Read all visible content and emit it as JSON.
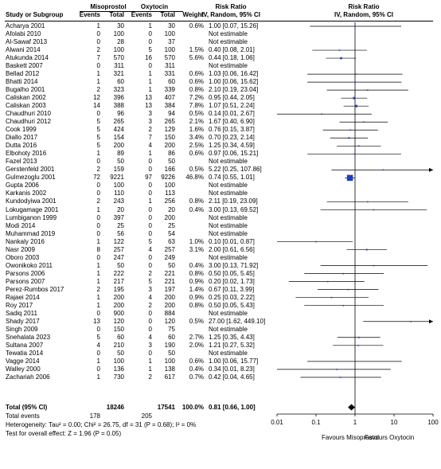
{
  "header": {
    "group1": "Misoprostol",
    "group2": "Oxytocin",
    "col_study": "Study or Subgroup",
    "col_events1": "Events",
    "col_total1": "Total",
    "col_events2": "Events",
    "col_total2": "Total",
    "col_weight": "Weight",
    "col_rr_title": "Risk Ratio",
    "col_rr_sub": "IV, Random, 95% CI",
    "plot_title": "Risk Ratio",
    "plot_sub": "IV, Random, 95% CI"
  },
  "studies": [
    {
      "name": "Acharya 2001",
      "e1": "1",
      "t1": "30",
      "e2": "1",
      "t2": "30",
      "w": "0.6%",
      "ci": "1.00 [0.07, 15.26]",
      "rr": 1.0,
      "lo": 0.07,
      "hi": 15.26,
      "wt": 0.6
    },
    {
      "name": "Afolabi 2010",
      "e1": "0",
      "t1": "100",
      "e2": "0",
      "t2": "100",
      "w": "",
      "ci": "Not estimable",
      "rr": null,
      "lo": null,
      "hi": null,
      "wt": 0
    },
    {
      "name": "Al-Sawaf 2013",
      "e1": "0",
      "t1": "28",
      "e2": "0",
      "t2": "37",
      "w": "",
      "ci": "Not estimable",
      "rr": null,
      "lo": null,
      "hi": null,
      "wt": 0
    },
    {
      "name": "Alwani 2014",
      "e1": "2",
      "t1": "100",
      "e2": "5",
      "t2": "100",
      "w": "1.5%",
      "ci": "0.40 [0.08, 2.01]",
      "rr": 0.4,
      "lo": 0.08,
      "hi": 2.01,
      "wt": 1.5
    },
    {
      "name": "Atukunda 2014",
      "e1": "7",
      "t1": "570",
      "e2": "16",
      "t2": "570",
      "w": "5.6%",
      "ci": "0.44 [0.18, 1.06]",
      "rr": 0.44,
      "lo": 0.18,
      "hi": 1.06,
      "wt": 5.6
    },
    {
      "name": "Baskett 2007",
      "e1": "0",
      "t1": "311",
      "e2": "0",
      "t2": "311",
      "w": "",
      "ci": "Not estimable",
      "rr": null,
      "lo": null,
      "hi": null,
      "wt": 0
    },
    {
      "name": "Bellad 2012",
      "e1": "1",
      "t1": "321",
      "e2": "1",
      "t2": "331",
      "w": "0.6%",
      "ci": "1.03 [0.06, 16.42]",
      "rr": 1.03,
      "lo": 0.06,
      "hi": 16.42,
      "wt": 0.6
    },
    {
      "name": "Bhatti 2014",
      "e1": "1",
      "t1": "60",
      "e2": "1",
      "t2": "60",
      "w": "0.6%",
      "ci": "1.00 [0.06, 15.62]",
      "rr": 1.0,
      "lo": 0.06,
      "hi": 15.62,
      "wt": 0.6
    },
    {
      "name": "Bugalho 2001",
      "e1": "2",
      "t1": "323",
      "e2": "1",
      "t2": "339",
      "w": "0.8%",
      "ci": "2.10 [0.19, 23.04]",
      "rr": 2.1,
      "lo": 0.19,
      "hi": 23.04,
      "wt": 0.8
    },
    {
      "name": "Caliskan 2002",
      "e1": "12",
      "t1": "396",
      "e2": "13",
      "t2": "407",
      "w": "7.2%",
      "ci": "0.95 [0.44, 2.05]",
      "rr": 0.95,
      "lo": 0.44,
      "hi": 2.05,
      "wt": 7.2
    },
    {
      "name": "Caliskan 2003",
      "e1": "14",
      "t1": "388",
      "e2": "13",
      "t2": "384",
      "w": "7.8%",
      "ci": "1.07 [0.51, 2.24]",
      "rr": 1.07,
      "lo": 0.51,
      "hi": 2.24,
      "wt": 7.8
    },
    {
      "name": "Chaudhuri 2010",
      "e1": "0",
      "t1": "96",
      "e2": "3",
      "t2": "94",
      "w": "0.5%",
      "ci": "0.14 [0.01, 2.67]",
      "rr": 0.14,
      "lo": 0.01,
      "hi": 2.67,
      "wt": 0.5
    },
    {
      "name": "Chaudhuri 2012",
      "e1": "5",
      "t1": "265",
      "e2": "3",
      "t2": "265",
      "w": "2.1%",
      "ci": "1.67 [0.40, 6.90]",
      "rr": 1.67,
      "lo": 0.4,
      "hi": 6.9,
      "wt": 2.1
    },
    {
      "name": "Cook 1999",
      "e1": "5",
      "t1": "424",
      "e2": "2",
      "t2": "129",
      "w": "1.6%",
      "ci": "0.76 [0.15, 3.87]",
      "rr": 0.76,
      "lo": 0.15,
      "hi": 3.87,
      "wt": 1.6
    },
    {
      "name": "Diallo 2017",
      "e1": "5",
      "t1": "154",
      "e2": "7",
      "t2": "150",
      "w": "3.4%",
      "ci": "0.70 [0.23, 2.14]",
      "rr": 0.7,
      "lo": 0.23,
      "hi": 2.14,
      "wt": 3.4
    },
    {
      "name": "Dutta 2016",
      "e1": "5",
      "t1": "200",
      "e2": "4",
      "t2": "200",
      "w": "2.5%",
      "ci": "1.25 [0.34, 4.59]",
      "rr": 1.25,
      "lo": 0.34,
      "hi": 4.59,
      "wt": 2.5
    },
    {
      "name": "Elbohoty 2016",
      "e1": "1",
      "t1": "89",
      "e2": "1",
      "t2": "86",
      "w": "0.6%",
      "ci": "0.97 [0.06, 15.21]",
      "rr": 0.97,
      "lo": 0.06,
      "hi": 15.21,
      "wt": 0.6
    },
    {
      "name": "Fazel 2013",
      "e1": "0",
      "t1": "50",
      "e2": "0",
      "t2": "50",
      "w": "",
      "ci": "Not estimable",
      "rr": null,
      "lo": null,
      "hi": null,
      "wt": 0
    },
    {
      "name": "Gerstenfeld 2001",
      "e1": "2",
      "t1": "159",
      "e2": "0",
      "t2": "166",
      "w": "0.5%",
      "ci": "5.22 [0.25, 107.86]",
      "rr": 5.22,
      "lo": 0.25,
      "hi": 107.86,
      "wt": 0.5
    },
    {
      "name": "Gulmezoglu 2001",
      "e1": "72",
      "t1": "9221",
      "e2": "97",
      "t2": "9226",
      "w": "46.8%",
      "ci": "0.74 [0.55, 1.01]",
      "rr": 0.74,
      "lo": 0.55,
      "hi": 1.01,
      "wt": 46.8
    },
    {
      "name": "Gupta 2006",
      "e1": "0",
      "t1": "100",
      "e2": "0",
      "t2": "100",
      "w": "",
      "ci": "Not estimable",
      "rr": null,
      "lo": null,
      "hi": null,
      "wt": 0
    },
    {
      "name": "Karkanis 2002",
      "e1": "0",
      "t1": "110",
      "e2": "0",
      "t2": "113",
      "w": "",
      "ci": "Not estimable",
      "rr": null,
      "lo": null,
      "hi": null,
      "wt": 0
    },
    {
      "name": "Kundodyiwa 2001",
      "e1": "2",
      "t1": "243",
      "e2": "1",
      "t2": "256",
      "w": "0.8%",
      "ci": "2.11 [0.19, 23.09]",
      "rr": 2.11,
      "lo": 0.19,
      "hi": 23.09,
      "wt": 0.8
    },
    {
      "name": "Lokugamage 2001",
      "e1": "1",
      "t1": "20",
      "e2": "0",
      "t2": "20",
      "w": "0.4%",
      "ci": "3.00 [0.13, 69.52]",
      "rr": 3.0,
      "lo": 0.13,
      "hi": 69.52,
      "wt": 0.4
    },
    {
      "name": "Lumbiganon 1999",
      "e1": "0",
      "t1": "397",
      "e2": "0",
      "t2": "200",
      "w": "",
      "ci": "Not estimable",
      "rr": null,
      "lo": null,
      "hi": null,
      "wt": 0
    },
    {
      "name": "Modi 2014",
      "e1": "0",
      "t1": "25",
      "e2": "0",
      "t2": "25",
      "w": "",
      "ci": "Not estimable",
      "rr": null,
      "lo": null,
      "hi": null,
      "wt": 0
    },
    {
      "name": "Muhammad 2019",
      "e1": "0",
      "t1": "56",
      "e2": "0",
      "t2": "54",
      "w": "",
      "ci": "Not estimable",
      "rr": null,
      "lo": null,
      "hi": null,
      "wt": 0
    },
    {
      "name": "Nankaly 2016",
      "e1": "1",
      "t1": "122",
      "e2": "5",
      "t2": "63",
      "w": "1.0%",
      "ci": "0.10 [0.01, 0.87]",
      "rr": 0.1,
      "lo": 0.01,
      "hi": 0.87,
      "wt": 1.0
    },
    {
      "name": "Nasr 2009",
      "e1": "8",
      "t1": "257",
      "e2": "4",
      "t2": "257",
      "w": "3.1%",
      "ci": "2.00 [0.61, 6.56]",
      "rr": 2.0,
      "lo": 0.61,
      "hi": 6.56,
      "wt": 3.1
    },
    {
      "name": "Oboro 2003",
      "e1": "0",
      "t1": "247",
      "e2": "0",
      "t2": "249",
      "w": "",
      "ci": "Not estimable",
      "rr": null,
      "lo": null,
      "hi": null,
      "wt": 0
    },
    {
      "name": "Owonikoko 2011",
      "e1": "1",
      "t1": "50",
      "e2": "0",
      "t2": "50",
      "w": "0.4%",
      "ci": "3.00 [0.13, 71.92]",
      "rr": 3.0,
      "lo": 0.13,
      "hi": 71.92,
      "wt": 0.4
    },
    {
      "name": "Parsons 2006",
      "e1": "1",
      "t1": "222",
      "e2": "2",
      "t2": "221",
      "w": "0.8%",
      "ci": "0.50 [0.05, 5.45]",
      "rr": 0.5,
      "lo": 0.05,
      "hi": 5.45,
      "wt": 0.8
    },
    {
      "name": "Parsons 2007",
      "e1": "1",
      "t1": "217",
      "e2": "5",
      "t2": "221",
      "w": "0.9%",
      "ci": "0.20 [0.02, 1.73]",
      "rr": 0.2,
      "lo": 0.02,
      "hi": 1.73,
      "wt": 0.9
    },
    {
      "name": "Perez-Rumbos 2017",
      "e1": "2",
      "t1": "195",
      "e2": "3",
      "t2": "197",
      "w": "1.4%",
      "ci": "0.67 [0.11, 3.99]",
      "rr": 0.67,
      "lo": 0.11,
      "hi": 3.99,
      "wt": 1.4
    },
    {
      "name": "Rajaei 2014",
      "e1": "1",
      "t1": "200",
      "e2": "4",
      "t2": "200",
      "w": "0.9%",
      "ci": "0.25 [0.03, 2.22]",
      "rr": 0.25,
      "lo": 0.03,
      "hi": 2.22,
      "wt": 0.9
    },
    {
      "name": "Roy 2017",
      "e1": "1",
      "t1": "200",
      "e2": "2",
      "t2": "200",
      "w": "0.8%",
      "ci": "0.50 [0.05, 5.43]",
      "rr": 0.5,
      "lo": 0.05,
      "hi": 5.43,
      "wt": 0.8
    },
    {
      "name": "Sadiq 2011",
      "e1": "0",
      "t1": "900",
      "e2": "0",
      "t2": "884",
      "w": "",
      "ci": "Not estimable",
      "rr": null,
      "lo": null,
      "hi": null,
      "wt": 0
    },
    {
      "name": "Shady 2017",
      "e1": "13",
      "t1": "120",
      "e2": "0",
      "t2": "120",
      "w": "0.5%",
      "ci": "27.00 [1.62, 449.10]",
      "rr": 27.0,
      "lo": 1.62,
      "hi": 449.1,
      "wt": 0.5
    },
    {
      "name": "Singh 2009",
      "e1": "0",
      "t1": "150",
      "e2": "0",
      "t2": "75",
      "w": "",
      "ci": "Not estimable",
      "rr": null,
      "lo": null,
      "hi": null,
      "wt": 0
    },
    {
      "name": "Snehalata 2023",
      "e1": "5",
      "t1": "60",
      "e2": "4",
      "t2": "60",
      "w": "2.7%",
      "ci": "1.25 [0.35, 4.43]",
      "rr": 1.25,
      "lo": 0.35,
      "hi": 4.43,
      "wt": 2.7
    },
    {
      "name": "Sultana 2007",
      "e1": "4",
      "t1": "210",
      "e2": "3",
      "t2": "190",
      "w": "2.0%",
      "ci": "1.21 [0.27, 5.32]",
      "rr": 1.21,
      "lo": 0.27,
      "hi": 5.32,
      "wt": 2.0
    },
    {
      "name": "Tewatia 2014",
      "e1": "0",
      "t1": "50",
      "e2": "0",
      "t2": "50",
      "w": "",
      "ci": "Not estimable",
      "rr": null,
      "lo": null,
      "hi": null,
      "wt": 0
    },
    {
      "name": "Vagge 2014",
      "e1": "1",
      "t1": "100",
      "e2": "1",
      "t2": "100",
      "w": "0.6%",
      "ci": "1.00 [0.06, 15.77]",
      "rr": 1.0,
      "lo": 0.06,
      "hi": 15.77,
      "wt": 0.6
    },
    {
      "name": "Walley 2000",
      "e1": "0",
      "t1": "136",
      "e2": "1",
      "t2": "138",
      "w": "0.4%",
      "ci": "0.34 [0.01, 8.23]",
      "rr": 0.34,
      "lo": 0.01,
      "hi": 8.23,
      "wt": 0.4
    },
    {
      "name": "Zachariah 2006",
      "e1": "1",
      "t1": "730",
      "e2": "2",
      "t2": "617",
      "w": "0.7%",
      "ci": "0.42 [0.04, 4.65]",
      "rr": 0.42,
      "lo": 0.04,
      "hi": 4.65,
      "wt": 0.7
    }
  ],
  "total": {
    "label": "Total (95% CI)",
    "t1": "18246",
    "t2": "17541",
    "w": "100.0%",
    "ci": "0.81 [0.66, 1.00]",
    "rr": 0.81,
    "lo": 0.66,
    "hi": 1.0
  },
  "events": {
    "label": "Total events",
    "e1": "178",
    "e2": "205"
  },
  "heterogeneity": "Heterogeneity: Tau² = 0.00; Chi² = 26.75, df = 31 (P = 0.68); I² = 0%",
  "overall_effect": "Test for overall effect: Z = 1.96 (P = 0.05)",
  "axis": {
    "ticks": [
      0.01,
      0.1,
      1,
      10,
      100
    ],
    "tick_labels": [
      "0.01",
      "0.1",
      "1",
      "10",
      "100"
    ],
    "favours_left": "Favours Misoprostol",
    "favours_right": "Favours Oxytocin"
  },
  "colors": {
    "marker": "#1f3fbf",
    "diamond": "#000000",
    "line": "#000000"
  },
  "chart_data": {
    "type": "forest",
    "scale": "log",
    "xlim": [
      0.01,
      100
    ],
    "reference_line": 1,
    "measure": "Risk Ratio (IV, Random, 95% CI)"
  }
}
